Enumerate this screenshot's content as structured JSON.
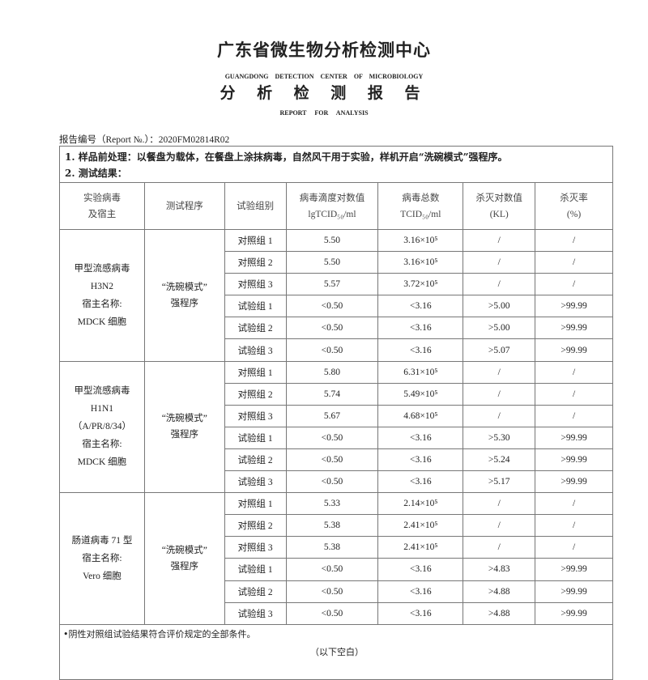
{
  "header": {
    "title": "广东省微生物分析检测中心",
    "org_en": "GUANGDONG DETECTION CENTER OF MICROBIOLOGY",
    "report_title": "分 析 检 测 报 告",
    "report_title_en": "REPORT FOR ANALYSIS",
    "report_no": "报告编号（Report №.）：2020FM02814R02"
  },
  "section": {
    "line1": "1. 样品前处理：以餐盘为载体，在餐盘上涂抹病毒，自然风干用于实验，样机开启“洗碗模式”强程序。",
    "line2": "2. 测试结果："
  },
  "table": {
    "columns": [
      "实验病毒\n及宿主",
      "测试程序",
      "试验组别",
      "病毒滴度对数值\nlgTCID₅₀/ml",
      "病毒总数\nTCID₅₀/ml",
      "杀灭对数值\n(KL)",
      "杀灭率\n(%)"
    ],
    "groups": [
      {
        "virus": "甲型流感病毒\nH3N2\n宿主名称:\nMDCK 细胞",
        "program": "“洗碗模式”\n强程序",
        "rows": [
          [
            "对照组 1",
            "5.50",
            "3.16×10⁵",
            "/",
            "/"
          ],
          [
            "对照组 2",
            "5.50",
            "3.16×10⁵",
            "/",
            "/"
          ],
          [
            "对照组 3",
            "5.57",
            "3.72×10⁵",
            "/",
            "/"
          ],
          [
            "试验组 1",
            "<0.50",
            "<3.16",
            ">5.00",
            ">99.99"
          ],
          [
            "试验组 2",
            "<0.50",
            "<3.16",
            ">5.00",
            ">99.99"
          ],
          [
            "试验组 3",
            "<0.50",
            "<3.16",
            ">5.07",
            ">99.99"
          ]
        ]
      },
      {
        "virus": "甲型流感病毒\nH1N1\n（A/PR/8/34）\n宿主名称:\nMDCK 细胞",
        "program": "“洗碗模式”\n强程序",
        "rows": [
          [
            "对照组 1",
            "5.80",
            "6.31×10⁵",
            "/",
            "/"
          ],
          [
            "对照组 2",
            "5.74",
            "5.49×10⁵",
            "/",
            "/"
          ],
          [
            "对照组 3",
            "5.67",
            "4.68×10⁵",
            "/",
            "/"
          ],
          [
            "试验组 1",
            "<0.50",
            "<3.16",
            ">5.30",
            ">99.99"
          ],
          [
            "试验组 2",
            "<0.50",
            "<3.16",
            ">5.24",
            ">99.99"
          ],
          [
            "试验组 3",
            "<0.50",
            "<3.16",
            ">5.17",
            ">99.99"
          ]
        ]
      },
      {
        "virus": "肠道病毒 71 型\n宿主名称:\nVero 细胞",
        "program": "“洗碗模式”\n强程序",
        "rows": [
          [
            "对照组 1",
            "5.33",
            "2.14×10⁵",
            "/",
            "/"
          ],
          [
            "对照组 2",
            "5.38",
            "2.41×10⁵",
            "/",
            "/"
          ],
          [
            "对照组 3",
            "5.38",
            "2.41×10⁵",
            "/",
            "/"
          ],
          [
            "试验组 1",
            "<0.50",
            "<3.16",
            ">4.83",
            ">99.99"
          ],
          [
            "试验组 2",
            "<0.50",
            "<3.16",
            ">4.88",
            ">99.99"
          ],
          [
            "试验组 3",
            "<0.50",
            "<3.16",
            ">4.88",
            ">99.99"
          ]
        ]
      }
    ]
  },
  "notes": {
    "note1": "•阴性对照组试验结果符合评价规定的全部条件。",
    "blank": "（以下空白）"
  }
}
